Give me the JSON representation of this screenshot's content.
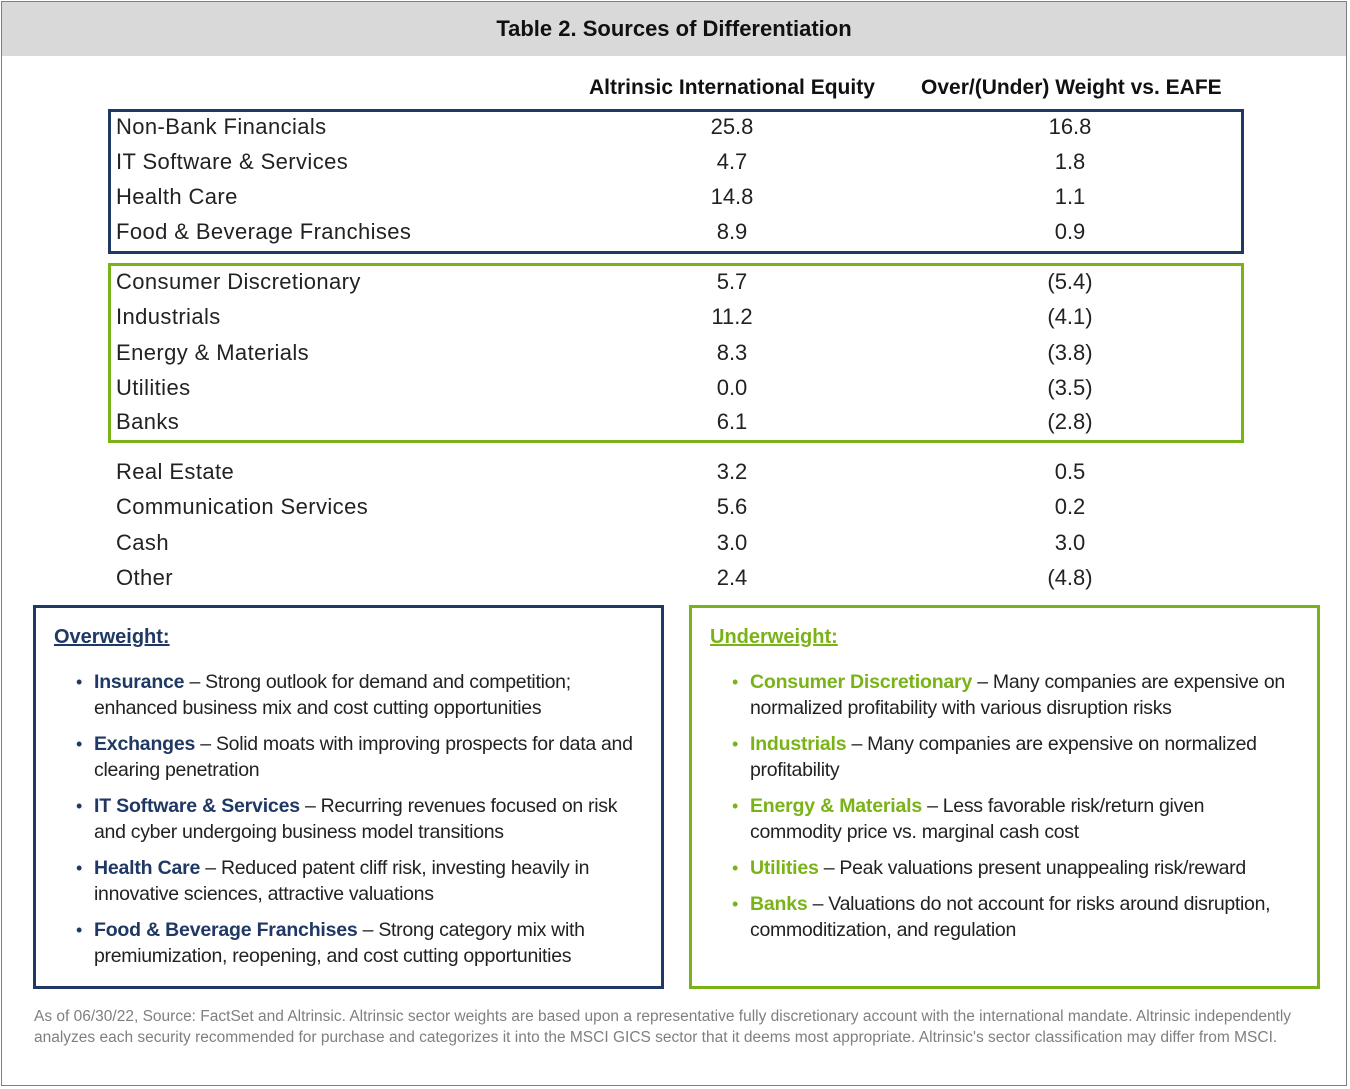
{
  "title": "Table 2. Sources of Differentiation",
  "columns": {
    "col1": "Altrinsic International Equity",
    "col2": "Over/(Under) Weight vs. EAFE"
  },
  "groups": {
    "overweight": [
      {
        "name": "Non-Bank Financials",
        "v1": "25.8",
        "v2": "16.8"
      },
      {
        "name": "IT Software & Services",
        "v1": "4.7",
        "v2": "1.8"
      },
      {
        "name": "Health Care",
        "v1": "14.8",
        "v2": "1.1"
      },
      {
        "name": "Food & Beverage Franchises",
        "v1": "8.9",
        "v2": "0.9"
      }
    ],
    "underweight": [
      {
        "name": "Consumer Discretionary",
        "v1": "5.7",
        "v2": "(5.4)"
      },
      {
        "name": "Industrials",
        "v1": "11.2",
        "v2": "(4.1)"
      },
      {
        "name": "Energy & Materials",
        "v1": "8.3",
        "v2": "(3.8)"
      },
      {
        "name": "Utilities",
        "v1": "0.0",
        "v2": "(3.5)"
      },
      {
        "name": "Banks",
        "v1": "6.1",
        "v2": "(2.8)"
      }
    ],
    "other": [
      {
        "name": "Real Estate",
        "v1": "3.2",
        "v2": "0.5"
      },
      {
        "name": "Communication Services",
        "v1": "5.6",
        "v2": "0.2"
      },
      {
        "name": "Cash",
        "v1": "3.0",
        "v2": "3.0"
      },
      {
        "name": "Other",
        "v1": "2.4",
        "v2": "(4.8)"
      }
    ]
  },
  "overweight_notes": {
    "heading": "Overweight:",
    "items": [
      {
        "term": "Insurance",
        "text": " – Strong outlook for demand and competition; enhanced business mix and cost cutting opportunities"
      },
      {
        "term": "Exchanges",
        "text": " – Solid moats with improving prospects for data and clearing penetration"
      },
      {
        "term": "IT Software & Services",
        "text": " – Recurring revenues focused on risk and cyber undergoing business model transitions"
      },
      {
        "term": "Health Care",
        "text": " – Reduced patent cliff risk, investing heavily in innovative sciences, attractive valuations"
      },
      {
        "term": "Food & Beverage Franchises",
        "text": " – Strong category mix with premiumization, reopening, and cost cutting opportunities"
      }
    ]
  },
  "underweight_notes": {
    "heading": "Underweight:",
    "items": [
      {
        "term": "Consumer Discretionary",
        "text": " – Many companies are expensive on normalized profitability with various disruption risks"
      },
      {
        "term": "Industrials",
        "text": " – Many companies are expensive on normalized profitability"
      },
      {
        "term": "Energy & Materials",
        "text": " – Less favorable risk/return given commodity price vs. marginal cash cost"
      },
      {
        "term": "Utilities",
        "text": " – Peak valuations present unappealing risk/reward"
      },
      {
        "term": "Banks",
        "text": " – Valuations do not account for risks around disruption, commoditization, and regulation"
      }
    ]
  },
  "footnote": "As of 06/30/22, Source: FactSet and Altrinsic. Altrinsic sector weights are based upon a representative fully discretionary account with the international mandate. Altrinsic independently analyzes each security recommended for purchase and categorizes it into the MSCI GICS sector that it deems most appropriate. Altrinsic's sector classification may differ from MSCI.",
  "colors": {
    "navy": "#1f3864",
    "green": "#7ab317",
    "header_bg": "#d9d9d9",
    "footnote": "#7f7f7f"
  }
}
